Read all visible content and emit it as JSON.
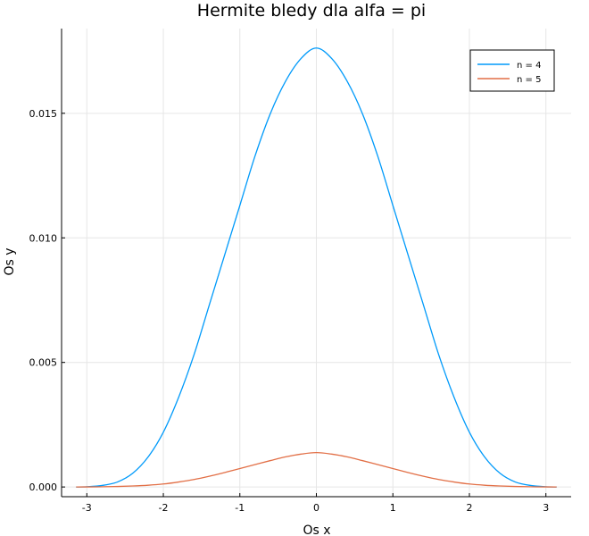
{
  "chart_data": {
    "type": "line",
    "title": "Hermite bledy dla alfa = pi",
    "xlabel": "Os x",
    "ylabel": "Os y",
    "xlim": [
      -3.14159,
      3.14159
    ],
    "ylim": [
      0.0,
      0.0176
    ],
    "x_ticks": [
      -3,
      -2,
      -1,
      0,
      1,
      2,
      3
    ],
    "x_tick_labels": [
      "-3",
      "-2",
      "-1",
      "0",
      "1",
      "2",
      "3"
    ],
    "y_ticks": [
      0.0,
      0.005,
      0.01,
      0.015
    ],
    "y_tick_labels": [
      "0.000",
      "0.005",
      "0.010",
      "0.015"
    ],
    "grid": true,
    "legend_position": "top-right",
    "series": [
      {
        "name": "n = 4",
        "color": "#009AFA",
        "x": [
          -3.14,
          -3.0,
          -2.8,
          -2.6,
          -2.4,
          -2.2,
          -2.0,
          -1.8,
          -1.6,
          -1.4,
          -1.2,
          -1.0,
          -0.8,
          -0.6,
          -0.4,
          -0.2,
          0.0,
          0.2,
          0.4,
          0.6,
          0.8,
          1.0,
          1.2,
          1.4,
          1.6,
          1.8,
          2.0,
          2.2,
          2.4,
          2.6,
          2.8,
          3.0,
          3.14
        ],
        "y": [
          1e-06,
          8e-06,
          6e-05,
          0.0002,
          0.00055,
          0.0012,
          0.0022,
          0.0036,
          0.0053,
          0.0073,
          0.0093,
          0.0113,
          0.0133,
          0.015,
          0.0163,
          0.0172,
          0.01762,
          0.0172,
          0.0163,
          0.015,
          0.0133,
          0.0113,
          0.0093,
          0.0073,
          0.0053,
          0.0036,
          0.0022,
          0.0012,
          0.00055,
          0.0002,
          6e-05,
          8e-06,
          1e-06
        ]
      },
      {
        "name": "n = 5",
        "color": "#E26F46",
        "x": [
          -3.14,
          -3.0,
          -2.8,
          -2.6,
          -2.4,
          -2.2,
          -2.0,
          -1.8,
          -1.6,
          -1.4,
          -1.2,
          -1.0,
          -0.8,
          -0.6,
          -0.4,
          -0.2,
          0.0,
          0.2,
          0.4,
          0.6,
          0.8,
          1.0,
          1.2,
          1.4,
          1.6,
          1.8,
          2.0,
          2.2,
          2.4,
          2.6,
          2.8,
          3.0,
          3.14
        ],
        "y": [
          1e-06,
          3e-06,
          8e-06,
          2e-05,
          4e-05,
          7e-05,
          0.00012,
          0.0002,
          0.0003,
          0.00043,
          0.00058,
          0.00074,
          0.0009,
          0.00106,
          0.00121,
          0.00132,
          0.00138,
          0.00132,
          0.00121,
          0.00106,
          0.0009,
          0.00074,
          0.00058,
          0.00043,
          0.0003,
          0.0002,
          0.00012,
          7e-05,
          4e-05,
          2e-05,
          8e-06,
          3e-06,
          1e-06
        ]
      }
    ]
  }
}
